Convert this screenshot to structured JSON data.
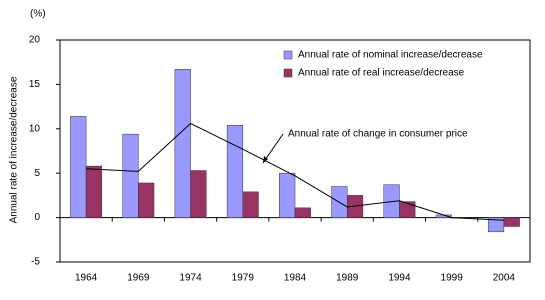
{
  "chart_data": {
    "type": "bar",
    "y_unit": "(%)",
    "ylabel": "Annual rate of increase/decrease",
    "categories": [
      "1964",
      "1969",
      "1974",
      "1979",
      "1984",
      "1989",
      "1994",
      "1999",
      "2004"
    ],
    "series": [
      {
        "name": "Annual rate of nominal increase/decrease",
        "type": "bar",
        "color": "#9999ff",
        "values": [
          11.4,
          9.4,
          16.7,
          10.4,
          5.0,
          3.5,
          3.7,
          0.3,
          -1.6
        ]
      },
      {
        "name": "Annual rate of real increase/decrease",
        "type": "bar",
        "color": "#993366",
        "values": [
          5.8,
          3.9,
          5.3,
          2.9,
          1.1,
          2.5,
          1.8,
          0,
          -1.0
        ]
      },
      {
        "name": "Annual rate of change in consumer price",
        "type": "line",
        "color": "#000000",
        "values": [
          5.5,
          5.2,
          10.6,
          7.7,
          4.7,
          1.2,
          1.9,
          0.0,
          -0.3
        ]
      }
    ],
    "ylim": [
      -5,
      20
    ],
    "yticks": [
      -5,
      0,
      5,
      10,
      15,
      20
    ],
    "legend": "top-right"
  }
}
